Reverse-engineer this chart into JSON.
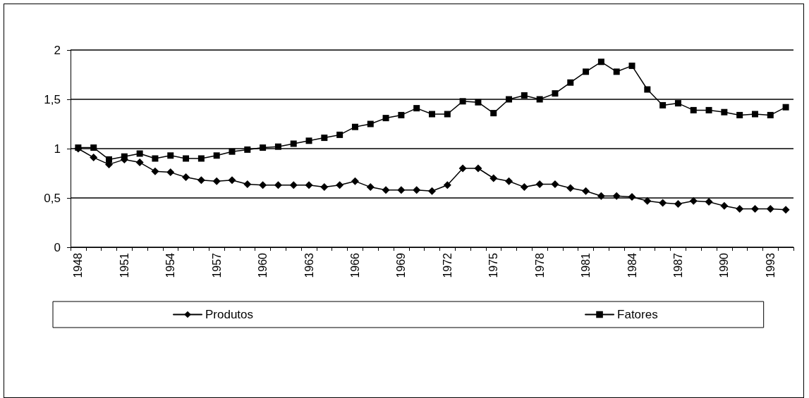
{
  "chart_data": {
    "type": "line",
    "categories": [
      "1948",
      null,
      null,
      "1951",
      null,
      null,
      "1954",
      null,
      null,
      "1957",
      null,
      null,
      "1960",
      null,
      null,
      "1963",
      null,
      null,
      "1966",
      null,
      null,
      "1969",
      null,
      null,
      "1972",
      null,
      null,
      "1975",
      null,
      null,
      "1978",
      null,
      null,
      "1981",
      null,
      null,
      "1984",
      null,
      null,
      "1987",
      null,
      null,
      "1990",
      null,
      null,
      "1993",
      null
    ],
    "series": [
      {
        "name": "Produtos",
        "color": "#000000",
        "marker": "diamond",
        "values": [
          1.0,
          0.91,
          0.84,
          0.89,
          0.86,
          0.77,
          0.76,
          0.71,
          0.68,
          0.67,
          0.68,
          0.64,
          0.63,
          0.63,
          0.63,
          0.63,
          0.61,
          0.63,
          0.67,
          0.61,
          0.58,
          0.58,
          0.58,
          0.57,
          0.63,
          0.8,
          0.8,
          0.7,
          0.67,
          0.61,
          0.64,
          0.64,
          0.6,
          0.57,
          0.52,
          0.52,
          0.51,
          0.47,
          0.45,
          0.44,
          0.47,
          0.46,
          0.42,
          0.39,
          0.39,
          0.39,
          0.38
        ]
      },
      {
        "name": "Fatores",
        "color": "#000000",
        "marker": "square",
        "values": [
          1.01,
          1.01,
          0.89,
          0.92,
          0.95,
          0.9,
          0.93,
          0.9,
          0.9,
          0.93,
          0.97,
          0.99,
          1.01,
          1.02,
          1.05,
          1.08,
          1.11,
          1.14,
          1.22,
          1.25,
          1.31,
          1.34,
          1.41,
          1.35,
          1.35,
          1.48,
          1.47,
          1.36,
          1.5,
          1.54,
          1.5,
          1.56,
          1.67,
          1.78,
          1.88,
          1.78,
          1.84,
          1.6,
          1.44,
          1.46,
          1.39,
          1.39,
          1.37,
          1.34,
          1.35,
          1.34,
          1.42
        ]
      }
    ],
    "ylim": [
      0,
      2
    ],
    "yticks": [
      0,
      {
        "value": 0.5,
        "label": "0,5"
      },
      1,
      {
        "value": 1.5,
        "label": "1,5"
      },
      2
    ],
    "grid": "y",
    "legend": "bottom",
    "line_style": "solid"
  }
}
